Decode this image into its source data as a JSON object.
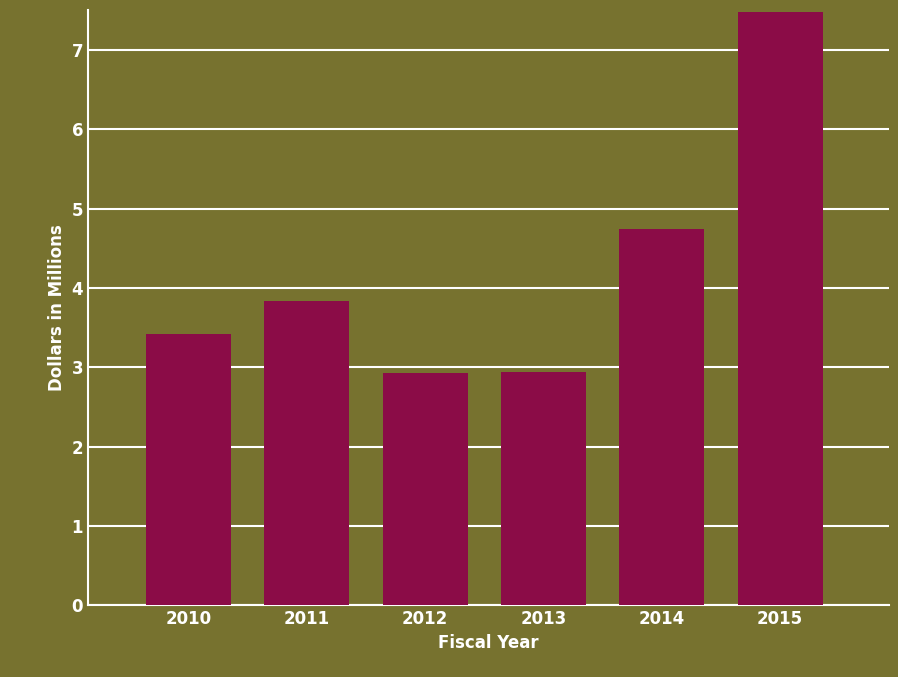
{
  "chart_data": {
    "type": "bar",
    "x_label": "Fiscal Year",
    "y_label": "Dollars in Millions",
    "categories": [
      "2010",
      "2011",
      "2012",
      "2013",
      "2014",
      "2015"
    ],
    "values": [
      3.42,
      3.83,
      2.93,
      2.94,
      4.74,
      7.48
    ],
    "color": "#8b0c47",
    "ylim": [
      0,
      7.5
    ],
    "yticks": [
      0,
      1,
      2,
      3,
      4,
      5,
      6,
      7
    ],
    "grid": true
  }
}
